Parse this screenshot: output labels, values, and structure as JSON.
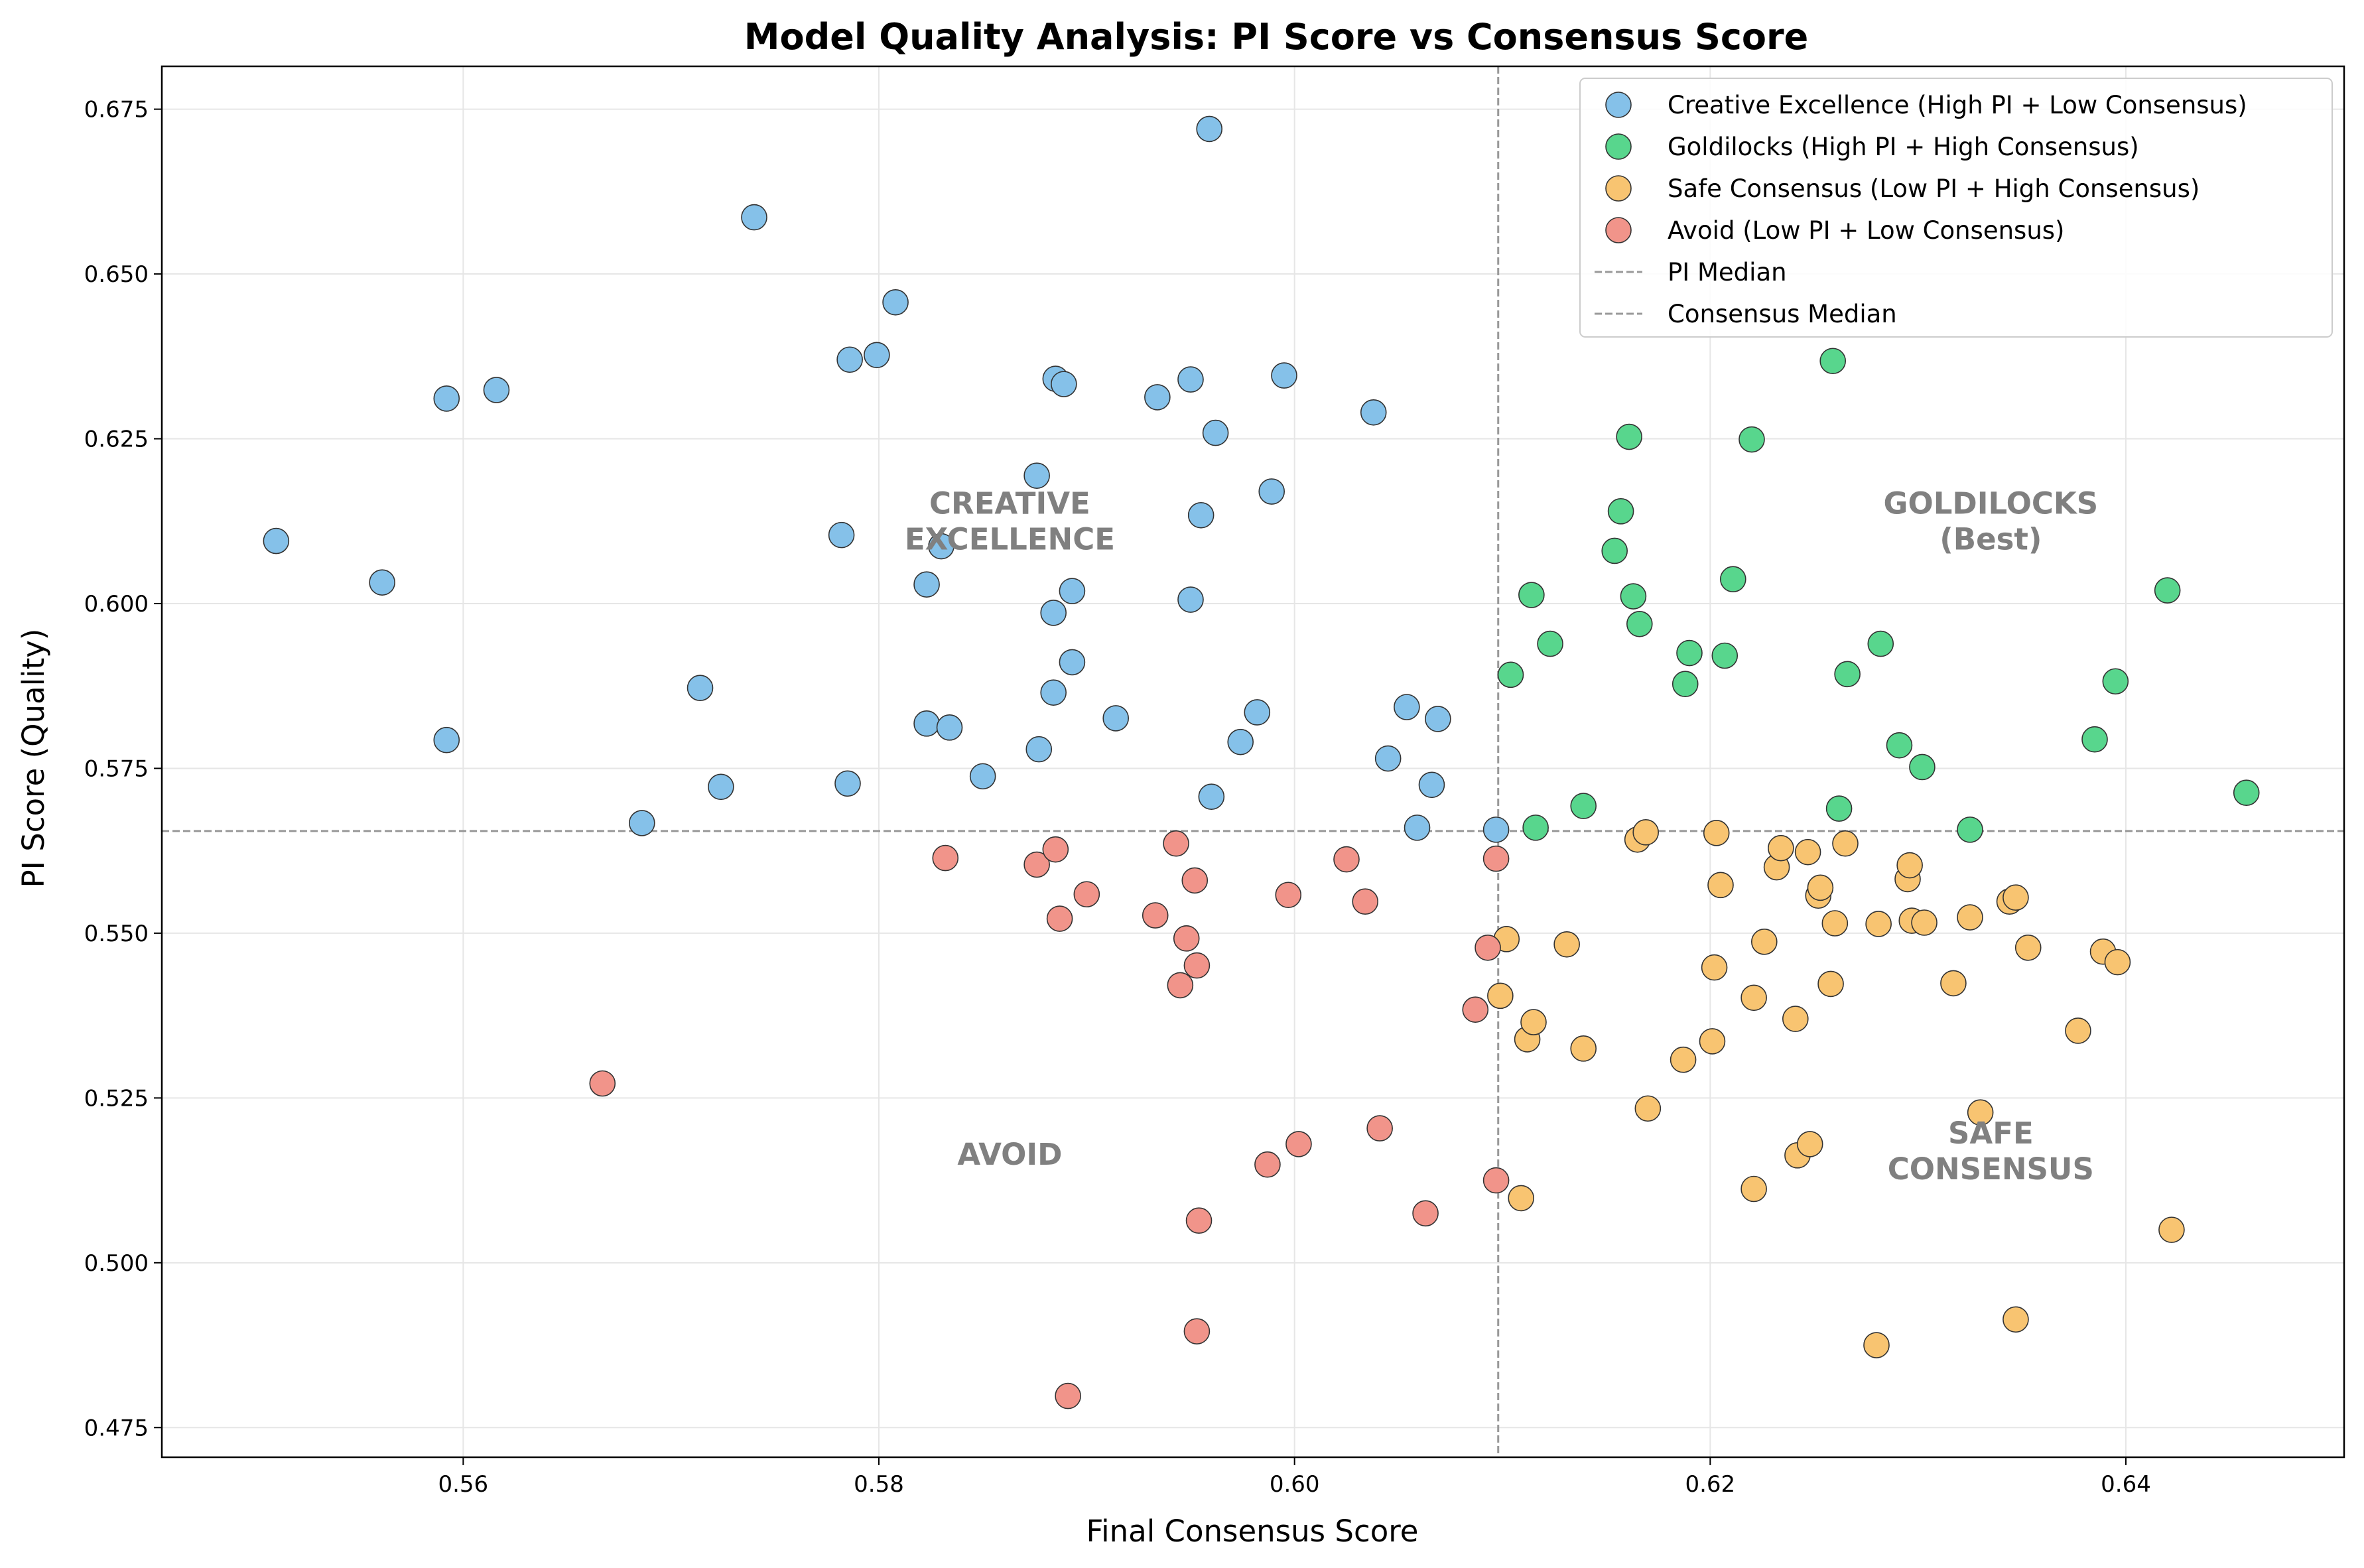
{
  "chart_data": {
    "type": "scatter",
    "title": "Model Quality Analysis: PI Score vs Consensus Score",
    "xlabel": "Final Consensus Score",
    "ylabel": "PI Score (Quality)",
    "xlim": [
      0.5455,
      0.6505
    ],
    "ylim": [
      0.4705,
      0.6815
    ],
    "x_ticks": [
      0.56,
      0.58,
      0.6,
      0.62,
      0.64
    ],
    "x_tick_labels": [
      "0.56",
      "0.58",
      "0.60",
      "0.62",
      "0.64"
    ],
    "y_ticks": [
      0.475,
      0.5,
      0.525,
      0.55,
      0.575,
      0.6,
      0.625,
      0.65,
      0.675
    ],
    "y_tick_labels": [
      "0.475",
      "0.500",
      "0.525",
      "0.550",
      "0.575",
      "0.600",
      "0.625",
      "0.650",
      "0.675"
    ],
    "grid": true,
    "legend_position": "top-right",
    "reference_lines": [
      {
        "name": "PI Median",
        "orientation": "horizontal",
        "value": 0.5655,
        "color": "#999999",
        "style": "dashed"
      },
      {
        "name": "Consensus Median",
        "orientation": "vertical",
        "value": 0.6098,
        "color": "#999999",
        "style": "dashed"
      }
    ],
    "annotations": [
      {
        "lines": [
          "CREATIVE",
          "EXCELLENCE"
        ],
        "x": 0.5863,
        "y": 0.6125
      },
      {
        "lines": [
          "GOLDILOCKS",
          "(Best)"
        ],
        "x": 0.6335,
        "y": 0.6125
      },
      {
        "lines": [
          "AVOID"
        ],
        "x": 0.5863,
        "y": 0.5165
      },
      {
        "lines": [
          "SAFE",
          "CONSENSUS"
        ],
        "x": 0.6335,
        "y": 0.517
      }
    ],
    "series": [
      {
        "name": "Creative Excellence (High PI + Low Consensus)",
        "color": "#85c1e9",
        "points": [
          [
            0.551,
            0.6095
          ],
          [
            0.5561,
            0.6032
          ],
          [
            0.5592,
            0.6311
          ],
          [
            0.5592,
            0.5793
          ],
          [
            0.5616,
            0.6324
          ],
          [
            0.5686,
            0.5667
          ],
          [
            0.5714,
            0.5872
          ],
          [
            0.5724,
            0.5722
          ],
          [
            0.574,
            0.6586
          ],
          [
            0.5782,
            0.6104
          ],
          [
            0.5785,
            0.5727
          ],
          [
            0.5786,
            0.637
          ],
          [
            0.5799,
            0.6377
          ],
          [
            0.5808,
            0.6457
          ],
          [
            0.5823,
            0.6029
          ],
          [
            0.5823,
            0.5818
          ],
          [
            0.583,
            0.6087
          ],
          [
            0.5834,
            0.5812
          ],
          [
            0.585,
            0.5738
          ],
          [
            0.5876,
            0.6194
          ],
          [
            0.5877,
            0.5779
          ],
          [
            0.5884,
            0.5986
          ],
          [
            0.5884,
            0.5865
          ],
          [
            0.5885,
            0.6341
          ],
          [
            0.5889,
            0.6333
          ],
          [
            0.5893,
            0.6019
          ],
          [
            0.5893,
            0.5911
          ],
          [
            0.5914,
            0.5826
          ],
          [
            0.5934,
            0.6313
          ],
          [
            0.595,
            0.634
          ],
          [
            0.595,
            0.6006
          ],
          [
            0.5955,
            0.6134
          ],
          [
            0.5959,
            0.672
          ],
          [
            0.596,
            0.5707
          ],
          [
            0.5962,
            0.6259
          ],
          [
            0.5974,
            0.579
          ],
          [
            0.5982,
            0.5835
          ],
          [
            0.5989,
            0.617
          ],
          [
            0.5995,
            0.6346
          ],
          [
            0.6038,
            0.629
          ],
          [
            0.6045,
            0.5765
          ],
          [
            0.6054,
            0.5843
          ],
          [
            0.6059,
            0.566
          ],
          [
            0.6066,
            0.5725
          ],
          [
            0.6069,
            0.5825
          ],
          [
            0.6097,
            0.5657
          ]
        ]
      },
      {
        "name": "Goldilocks (High PI + High Consensus)",
        "color": "#58d68d",
        "points": [
          [
            0.6104,
            0.5892
          ],
          [
            0.6114,
            0.6013
          ],
          [
            0.6116,
            0.566
          ],
          [
            0.6123,
            0.5939
          ],
          [
            0.6139,
            0.5693
          ],
          [
            0.6154,
            0.608
          ],
          [
            0.6157,
            0.614
          ],
          [
            0.6161,
            0.6253
          ],
          [
            0.6163,
            0.6011
          ],
          [
            0.6166,
            0.5969
          ],
          [
            0.6188,
            0.5878
          ],
          [
            0.619,
            0.5925
          ],
          [
            0.6207,
            0.5921
          ],
          [
            0.6211,
            0.6037
          ],
          [
            0.622,
            0.6249
          ],
          [
            0.6259,
            0.6368
          ],
          [
            0.6262,
            0.5689
          ],
          [
            0.6266,
            0.5893
          ],
          [
            0.6282,
            0.5939
          ],
          [
            0.6291,
            0.5785
          ],
          [
            0.6302,
            0.5752
          ],
          [
            0.6325,
            0.5657
          ],
          [
            0.6385,
            0.5794
          ],
          [
            0.6395,
            0.5882
          ],
          [
            0.642,
            0.602
          ],
          [
            0.6458,
            0.5713
          ]
        ]
      },
      {
        "name": "Safe Consensus (Low PI + High Consensus)",
        "color": "#f8c471",
        "points": [
          [
            0.6099,
            0.5405
          ],
          [
            0.6102,
            0.5491
          ],
          [
            0.6109,
            0.5098
          ],
          [
            0.6112,
            0.5339
          ],
          [
            0.6115,
            0.5365
          ],
          [
            0.6131,
            0.5483
          ],
          [
            0.6139,
            0.5325
          ],
          [
            0.6165,
            0.5642
          ],
          [
            0.6169,
            0.5653
          ],
          [
            0.617,
            0.5234
          ],
          [
            0.6187,
            0.5308
          ],
          [
            0.6201,
            0.5336
          ],
          [
            0.6202,
            0.5448
          ],
          [
            0.6203,
            0.5652
          ],
          [
            0.6205,
            0.5573
          ],
          [
            0.6221,
            0.5402
          ],
          [
            0.6221,
            0.5112
          ],
          [
            0.6226,
            0.5487
          ],
          [
            0.6232,
            0.56
          ],
          [
            0.6234,
            0.5629
          ],
          [
            0.6241,
            0.537
          ],
          [
            0.6242,
            0.5163
          ],
          [
            0.6247,
            0.5623
          ],
          [
            0.6248,
            0.518
          ],
          [
            0.6252,
            0.5557
          ],
          [
            0.6253,
            0.5569
          ],
          [
            0.6258,
            0.5423
          ],
          [
            0.626,
            0.5515
          ],
          [
            0.6265,
            0.5636
          ],
          [
            0.6281,
            0.5514
          ],
          [
            0.628,
            0.4875
          ],
          [
            0.6295,
            0.5582
          ],
          [
            0.6296,
            0.5603
          ],
          [
            0.6297,
            0.5519
          ],
          [
            0.6303,
            0.5516
          ],
          [
            0.6317,
            0.5424
          ],
          [
            0.6325,
            0.5524
          ],
          [
            0.633,
            0.5228
          ],
          [
            0.6344,
            0.5548
          ],
          [
            0.6347,
            0.5554
          ],
          [
            0.6347,
            0.4914
          ],
          [
            0.6353,
            0.5478
          ],
          [
            0.6377,
            0.5352
          ],
          [
            0.6389,
            0.5472
          ],
          [
            0.6396,
            0.5456
          ],
          [
            0.6422,
            0.505
          ]
        ]
      },
      {
        "name": "Avoid (Low PI + Low Consensus)",
        "color": "#f1948a",
        "points": [
          [
            0.5667,
            0.5272
          ],
          [
            0.5832,
            0.5614
          ],
          [
            0.5876,
            0.5604
          ],
          [
            0.5885,
            0.5627
          ],
          [
            0.5887,
            0.5522
          ],
          [
            0.5891,
            0.4798
          ],
          [
            0.59,
            0.5559
          ],
          [
            0.5933,
            0.5527
          ],
          [
            0.5943,
            0.5636
          ],
          [
            0.5945,
            0.5421
          ],
          [
            0.5948,
            0.5492
          ],
          [
            0.5952,
            0.558
          ],
          [
            0.5953,
            0.5451
          ],
          [
            0.5953,
            0.4896
          ],
          [
            0.5954,
            0.5064
          ],
          [
            0.5987,
            0.5149
          ],
          [
            0.5997,
            0.5558
          ],
          [
            0.6002,
            0.518
          ],
          [
            0.6025,
            0.5612
          ],
          [
            0.6034,
            0.5548
          ],
          [
            0.6041,
            0.5204
          ],
          [
            0.6063,
            0.5075
          ],
          [
            0.6087,
            0.5384
          ],
          [
            0.6093,
            0.5478
          ],
          [
            0.6097,
            0.5613
          ],
          [
            0.6097,
            0.5125
          ]
        ]
      }
    ]
  }
}
